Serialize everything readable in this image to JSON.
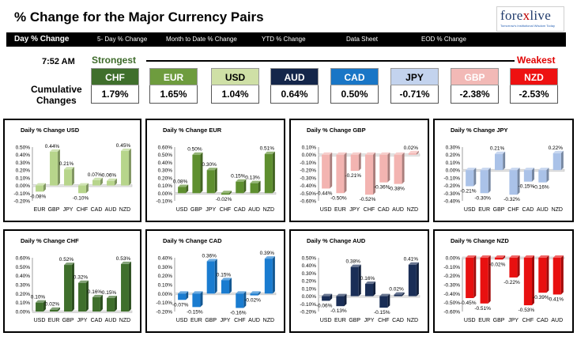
{
  "header": {
    "title": "% Change for the Major Currency Pairs",
    "logo": {
      "main_a": "fore",
      "main_x": "x",
      "main_b": "live",
      "tagline": "Tomorrow's Institutional Wisdom Today"
    }
  },
  "nav": [
    {
      "label": "Day % Change",
      "active": true
    },
    {
      "label": "5- Day % Change",
      "active": false
    },
    {
      "label": "Month to Date % Change",
      "active": false
    },
    {
      "label": "YTD % Change",
      "active": false
    },
    {
      "label": "Data Sheet",
      "active": false
    },
    {
      "label": "EOD % Change",
      "active": false
    }
  ],
  "summary": {
    "time": "7:52 AM",
    "strongest_label": "Strongest",
    "weakest_label": "Weakest",
    "cumulative_label_1": "Cumulative",
    "cumulative_label_2": "Changes",
    "currencies": [
      {
        "code": "CHF",
        "value": "1.79%",
        "bg": "#3f6f2c",
        "fg": "#ffffff"
      },
      {
        "code": "EUR",
        "value": "1.65%",
        "bg": "#6e9c3e",
        "fg": "#ffffff"
      },
      {
        "code": "USD",
        "value": "1.04%",
        "bg": "#cfe0a6",
        "fg": "#000000"
      },
      {
        "code": "AUD",
        "value": "0.64%",
        "bg": "#14264a",
        "fg": "#ffffff"
      },
      {
        "code": "CAD",
        "value": "0.50%",
        "bg": "#1976c6",
        "fg": "#ffffff"
      },
      {
        "code": "JPY",
        "value": "-0.71%",
        "bg": "#c3d3ee",
        "fg": "#000000"
      },
      {
        "code": "GBP",
        "value": "-2.38%",
        "bg": "#f2b9b6",
        "fg": "#ffffff"
      },
      {
        "code": "NZD",
        "value": "-2.53%",
        "bg": "#ee1111",
        "fg": "#ffffff"
      }
    ]
  },
  "chart_data": [
    {
      "type": "bar",
      "title": "Daily % Change USD",
      "categories": [
        "EUR",
        "GBP",
        "JPY",
        "CHF",
        "CAD",
        "AUD",
        "NZD"
      ],
      "values": [
        -0.08,
        0.44,
        0.21,
        -0.1,
        0.07,
        0.06,
        0.45
      ],
      "labels": [
        "-0.08%",
        "0.44%",
        "0.21%",
        "-0.10%",
        "0.07%",
        "0.06%",
        "0.45%"
      ],
      "ylim": [
        -0.2,
        0.5
      ],
      "yticks": [
        "0.50%",
        "0.40%",
        "0.30%",
        "0.20%",
        "0.10%",
        "0.00%",
        "-0.10%",
        "-0.20%"
      ],
      "color": "#b7d58b",
      "grid": false
    },
    {
      "type": "bar",
      "title": "Daily % Change EUR",
      "categories": [
        "USD",
        "GBP",
        "JPY",
        "CHF",
        "CAD",
        "AUD",
        "NZD"
      ],
      "values": [
        0.08,
        0.5,
        0.3,
        -0.02,
        0.15,
        0.13,
        0.51
      ],
      "labels": [
        "0.08%",
        "0.50%",
        "0.30%",
        "-0.02%",
        "0.15%",
        "0.13%",
        "0.51%"
      ],
      "ylim": [
        -0.1,
        0.6
      ],
      "yticks": [
        "0.60%",
        "0.50%",
        "0.40%",
        "0.30%",
        "0.20%",
        "0.10%",
        "0.00%",
        "-0.10%"
      ],
      "color": "#5e8f2f",
      "grid": false
    },
    {
      "type": "bar",
      "title": "Daily % Change GBP",
      "categories": [
        "USD",
        "EUR",
        "JPY",
        "CHF",
        "CAD",
        "AUD",
        "NZD"
      ],
      "values": [
        -0.44,
        -0.5,
        -0.21,
        -0.52,
        -0.36,
        -0.38,
        0.02
      ],
      "labels": [
        "-0.44%",
        "-0.50%",
        "-0.21%",
        "-0.52%",
        "-0.36%",
        "-0.38%",
        "0.02%"
      ],
      "ylim": [
        -0.6,
        0.1
      ],
      "yticks": [
        "0.10%",
        "0.00%",
        "-0.10%",
        "-0.20%",
        "-0.30%",
        "-0.40%",
        "-0.50%",
        "-0.60%"
      ],
      "color": "#f3b4b1",
      "grid": false
    },
    {
      "type": "bar",
      "title": "Daily % Change JPY",
      "categories": [
        "USD",
        "EUR",
        "GBP",
        "CHF",
        "CAD",
        "AUD",
        "NZD"
      ],
      "values": [
        -0.21,
        -0.3,
        0.21,
        -0.32,
        -0.15,
        -0.16,
        0.22
      ],
      "labels": [
        "-0.21%",
        "-0.30%",
        "0.21%",
        "-0.32%",
        "-0.15%",
        "-0.16%",
        "0.22%"
      ],
      "ylim": [
        -0.4,
        0.3
      ],
      "yticks": [
        "0.30%",
        "0.20%",
        "0.10%",
        "0.00%",
        "-0.10%",
        "-0.20%",
        "-0.30%",
        "-0.40%"
      ],
      "color": "#aac2e8",
      "grid": false
    },
    {
      "type": "bar",
      "title": "Daily % Change CHF",
      "categories": [
        "USD",
        "EUR",
        "GBP",
        "JPY",
        "CAD",
        "AUD",
        "NZD"
      ],
      "values": [
        0.1,
        0.02,
        0.52,
        0.32,
        0.16,
        0.15,
        0.53
      ],
      "labels": [
        "0.10%",
        "0.02%",
        "0.52%",
        "0.32%",
        "0.16%",
        "0.15%",
        "0.53%"
      ],
      "ylim": [
        0.0,
        0.6
      ],
      "yticks": [
        "0.60%",
        "0.50%",
        "0.40%",
        "0.30%",
        "0.20%",
        "0.10%",
        "0.00%"
      ],
      "color": "#3f6f2c",
      "grid": false
    },
    {
      "type": "bar",
      "title": "Daily % Change CAD",
      "categories": [
        "USD",
        "EUR",
        "GBP",
        "JPY",
        "CHF",
        "AUD",
        "NZD"
      ],
      "values": [
        -0.07,
        -0.15,
        0.36,
        0.15,
        -0.16,
        -0.02,
        0.39
      ],
      "labels": [
        "-0.07%",
        "-0.15%",
        "0.36%",
        "0.15%",
        "-0.16%",
        "-0.02%",
        "0.39%"
      ],
      "ylim": [
        -0.2,
        0.4
      ],
      "yticks": [
        "0.40%",
        "0.30%",
        "0.20%",
        "0.10%",
        "0.00%",
        "-0.10%",
        "-0.20%"
      ],
      "color": "#1a7cd0",
      "grid": false
    },
    {
      "type": "bar",
      "title": "Daily % Change AUD",
      "categories": [
        "USD",
        "EUR",
        "GBP",
        "JPY",
        "CHF",
        "CAD",
        "NZD"
      ],
      "values": [
        -0.06,
        -0.13,
        0.38,
        0.16,
        -0.15,
        0.02,
        0.41
      ],
      "labels": [
        "-0.06%",
        "-0.13%",
        "0.38%",
        "0.16%",
        "-0.15%",
        "0.02%",
        "0.41%"
      ],
      "ylim": [
        -0.2,
        0.5
      ],
      "yticks": [
        "0.50%",
        "0.40%",
        "0.30%",
        "0.20%",
        "0.10%",
        "0.00%",
        "-0.10%",
        "-0.20%"
      ],
      "color": "#1a2e57",
      "grid": false
    },
    {
      "type": "bar",
      "title": "Daily % Change NZD",
      "categories": [
        "USD",
        "EUR",
        "GBP",
        "JPY",
        "CHF",
        "CAD",
        "AUD"
      ],
      "values": [
        -0.45,
        -0.51,
        -0.02,
        -0.22,
        -0.53,
        -0.39,
        -0.41
      ],
      "labels": [
        "-0.45%",
        "-0.51%",
        "-0.02%",
        "-0.22%",
        "-0.53%",
        "-0.39%",
        "-0.41%"
      ],
      "ylim": [
        -0.6,
        0.0
      ],
      "yticks": [
        "0.00%",
        "-0.10%",
        "-0.20%",
        "-0.30%",
        "-0.40%",
        "-0.50%",
        "-0.60%"
      ],
      "color": "#e81010",
      "grid": false
    }
  ]
}
